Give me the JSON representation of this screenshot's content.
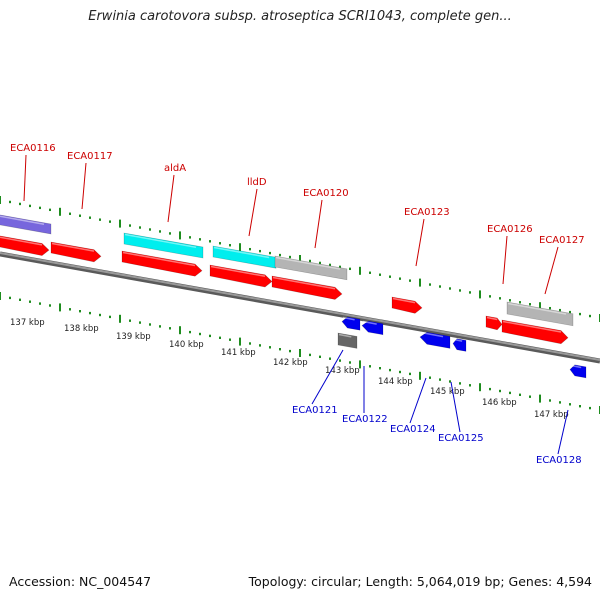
{
  "header": {
    "title": "Erwinia carotovora subsp. atroseptica SCRI1043, complete gen..."
  },
  "footer": {
    "accession": "Accession: NC_004547",
    "stats": "Topology: circular; Length: 5,064,019 bp; Genes: 4,594"
  },
  "colors": {
    "backbone": "#7a7a7a",
    "tick": "#1e8c1e",
    "forward_label": "#cc0000",
    "reverse_label": "#0000cc",
    "gene_red": "#ff0000",
    "gene_cyan": "#00eeee",
    "gene_grey": "#b4b4b4",
    "gene_purple": "#7766dd",
    "gene_blue": "#0000ee",
    "gene_darkgrey": "#666666"
  },
  "scale": {
    "kbp_labels": [
      "137 kbp",
      "138 kbp",
      "139 kbp",
      "140 kbp",
      "141 kbp",
      "142 kbp",
      "143 kbp",
      "144 kbp",
      "145 kbp",
      "146 kbp",
      "147 kbp"
    ]
  },
  "forward_genes": {
    "labels": [
      "ECA0116",
      "ECA0117",
      "aldA",
      "lldD",
      "ECA0120",
      "ECA0123",
      "ECA0126",
      "ECA0127"
    ]
  },
  "reverse_genes": {
    "labels": [
      "ECA0121",
      "ECA0122",
      "ECA0124",
      "ECA0125",
      "ECA0128"
    ]
  }
}
